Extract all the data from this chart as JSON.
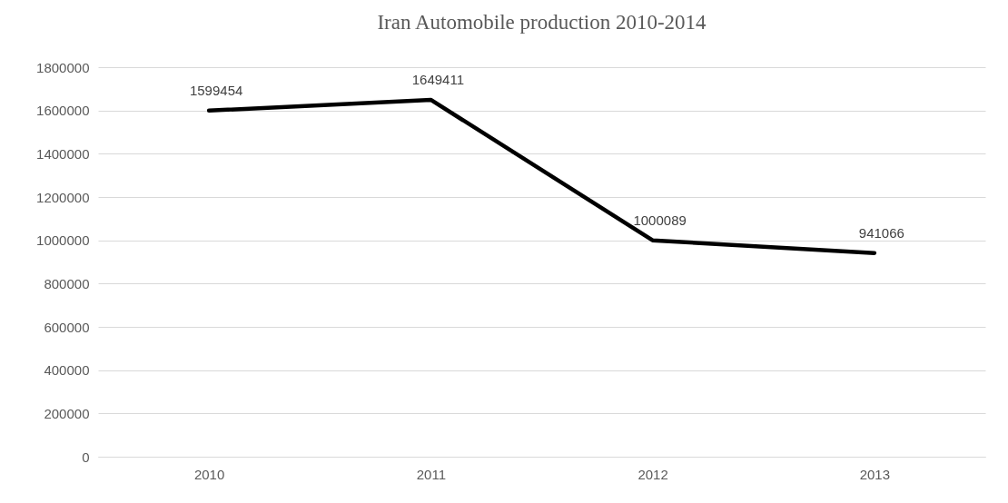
{
  "chart_data": {
    "type": "line",
    "title": "Iran Automobile production 2010-2014",
    "categories": [
      "2010",
      "2011",
      "2012",
      "2013"
    ],
    "values": [
      1599454,
      1649411,
      1000089,
      941066
    ],
    "color": "#000000",
    "ylim": [
      0,
      1800000
    ],
    "yticks": [
      0,
      200000,
      400000,
      600000,
      800000,
      1000000,
      1200000,
      1400000,
      1600000,
      1800000
    ],
    "grid": "y",
    "data_labels": true
  }
}
